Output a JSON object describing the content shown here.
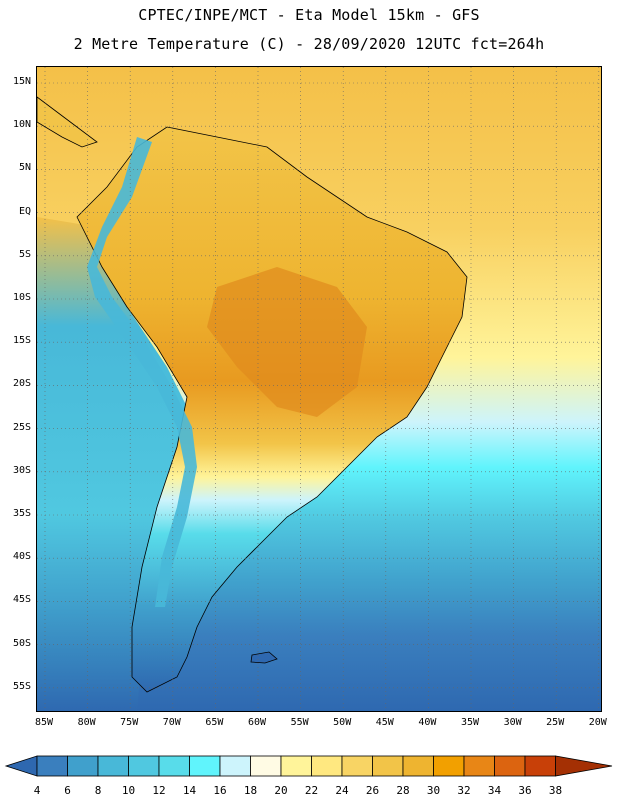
{
  "header": {
    "line1": "CPTEC/INPE/MCT -  Eta Model 15km - GFS",
    "line2": "2 Metre Temperature (C) - 28/09/2020 12UTC fct=264h"
  },
  "map": {
    "lat_labels": [
      "15N",
      "10N",
      "5N",
      "EQ",
      "5S",
      "10S",
      "15S",
      "20S",
      "25S",
      "30S",
      "35S",
      "40S",
      "45S",
      "50S",
      "55S"
    ],
    "lon_labels": [
      "85W",
      "80W",
      "75W",
      "70W",
      "65W",
      "60W",
      "55W",
      "50W",
      "45W",
      "40W",
      "35W",
      "30W",
      "25W",
      "20W"
    ]
  },
  "colorbar": {
    "values": [
      "4",
      "6",
      "8",
      "10",
      "12",
      "14",
      "16",
      "18",
      "20",
      "22",
      "24",
      "26",
      "28",
      "30",
      "32",
      "34",
      "36",
      "38"
    ],
    "colors": [
      "#2e68b0",
      "#3a7fbe",
      "#40a0cc",
      "#48b8d8",
      "#50c8e0",
      "#58dcea",
      "#60f4fc",
      "#cdf4fc",
      "#fffbe4",
      "#fff49a",
      "#ffe880",
      "#f8d464",
      "#f2c448",
      "#eeb430",
      "#f2a000",
      "#e88616",
      "#dc6410",
      "#c84008",
      "#a43004"
    ]
  }
}
